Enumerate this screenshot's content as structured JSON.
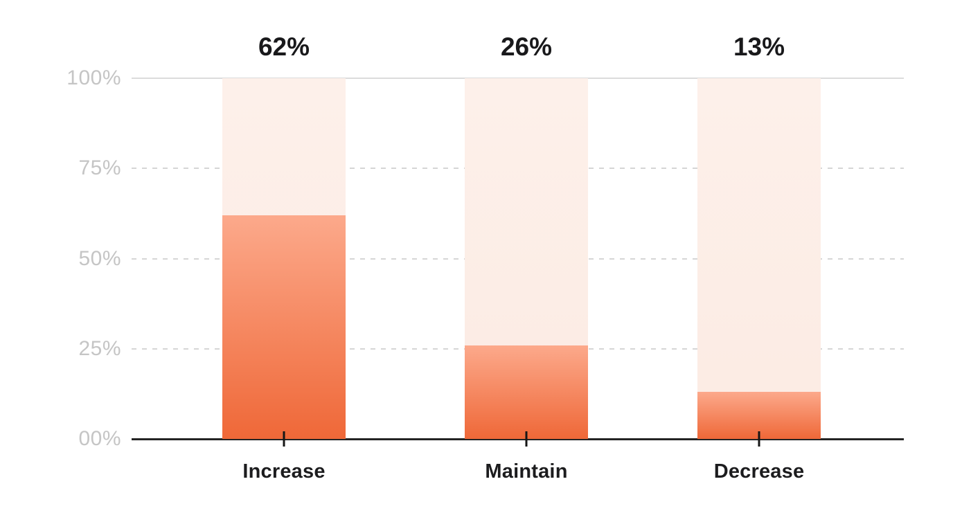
{
  "chart_data": {
    "type": "bar",
    "categories": [
      "Increase",
      "Maintain",
      "Decrease"
    ],
    "values": [
      62,
      26,
      13
    ],
    "value_labels": [
      "62%",
      "26%",
      "13%"
    ],
    "title": "",
    "xlabel": "",
    "ylabel": "",
    "ylim": [
      0,
      100
    ],
    "yticks": [
      {
        "value": 0,
        "label": "00%"
      },
      {
        "value": 25,
        "label": "25%"
      },
      {
        "value": 50,
        "label": "50%"
      },
      {
        "value": 75,
        "label": "75%"
      },
      {
        "value": 100,
        "label": "100%"
      }
    ],
    "grid": "horizontal; solid line at 100%, dashed lines at 75%/50%/25%, solid black baseline at 0%",
    "legend": "none",
    "bar_style": "full-height light pink track with orange gradient fill from baseline"
  },
  "colors": {
    "background": "#ffffff",
    "bar_fill_top": "#fca98b",
    "bar_fill_bottom": "#ef6838",
    "bar_track": "#fcede6",
    "grid_solid": "#dbdbdb",
    "grid_dashed": "#d5d5d5",
    "y_tick_label": "#c5c5c5",
    "value_label": "#19191b",
    "category_label": "#1c1c1e",
    "axis_line": "#242424"
  }
}
